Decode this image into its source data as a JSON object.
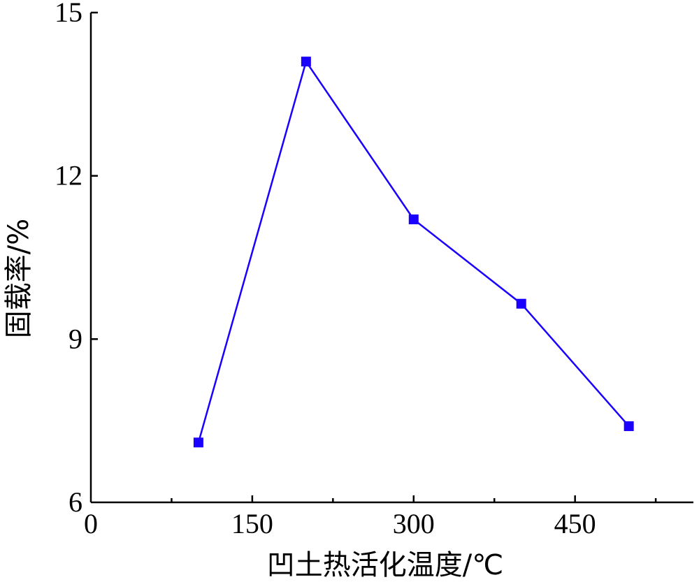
{
  "chart_data": {
    "type": "line",
    "title": "",
    "xlabel": "凹土热活化温度/℃",
    "ylabel": "固载率/%",
    "xlim": [
      0,
      560
    ],
    "ylim": [
      6,
      15
    ],
    "xticks": [
      0,
      150,
      300,
      450
    ],
    "xminor": [
      75,
      225,
      375,
      525
    ],
    "yticks": [
      6,
      9,
      12,
      15
    ],
    "grid": false,
    "legend": "none",
    "marker": "square",
    "color": "#1a00ff",
    "series": [
      {
        "x": [
          100,
          200,
          300,
          400,
          500
        ],
        "values": [
          7.1,
          14.1,
          11.2,
          9.65,
          7.4
        ]
      }
    ]
  }
}
